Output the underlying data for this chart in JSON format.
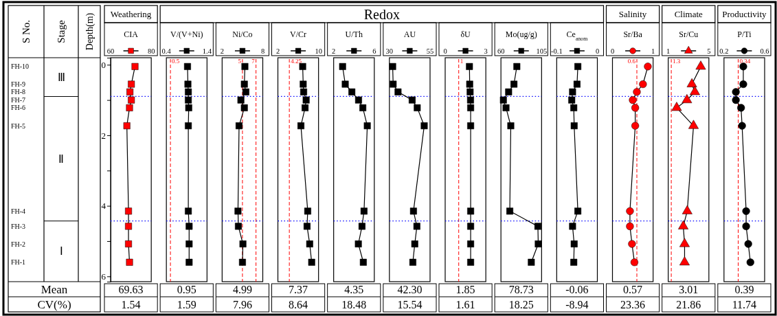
{
  "chart_data": [
    {
      "type": "other",
      "annotations": [
        "Weathering",
        "Redox",
        "Salinity",
        "Climate",
        "Productivity",
        "S No.",
        "Stage",
        "Mean",
        "CV(%)",
        "Ⅲ",
        "Ⅱ",
        "Ⅰ",
        "FH-10",
        "FH-9",
        "FH-8",
        "FH-7",
        "FH-6",
        "FH-5",
        "FH-4",
        "FH-3",
        "FH-2",
        "FH-1"
      ]
    },
    {
      "type": "line",
      "title": "CIA",
      "ylabel": "Depth(m)",
      "xlim": [
        60,
        80
      ],
      "xticks": [
        60,
        80
      ],
      "ylim": [
        6.15,
        -0.2
      ],
      "yticks": [
        0,
        {
          "value": 1,
          "label": null
        },
        2,
        {
          "value": 3,
          "label": null
        },
        4,
        {
          "value": 5,
          "label": null
        },
        6
      ],
      "marker": "square",
      "series": [
        {
          "color": "#ff0000",
          "x": [
            72.0,
            70.2,
            69.5,
            70.2,
            69.3,
            68.0,
            68.8,
            68.8,
            68.8,
            69.3
          ],
          "values": [
            0.05,
            0.55,
            0.77,
            1.0,
            1.22,
            1.73,
            4.15,
            4.58,
            5.08,
            5.6
          ]
        }
      ],
      "ref_lines": [
        {
          "axis": "y",
          "value": 0.9,
          "color": "#0000ff",
          "line_style": "dotted"
        },
        {
          "axis": "y",
          "value": 4.43,
          "color": "#0000ff",
          "line_style": "dotted"
        }
      ],
      "annotations": [
        "69.63",
        "1.54"
      ]
    },
    {
      "type": "line",
      "title": "V/(V+Ni)",
      "xlim": [
        0.4,
        1.4
      ],
      "xticks": [
        0.4,
        1.4
      ],
      "ylim": [
        6.15,
        -0.2
      ],
      "tick_labels": "x",
      "marker": "square",
      "series": [
        {
          "color": "#000000",
          "x": [
            0.92,
            0.93,
            0.94,
            0.94,
            0.95,
            0.94,
            0.94,
            0.96,
            0.96,
            0.96
          ],
          "values": [
            0.05,
            0.55,
            0.77,
            1.0,
            1.22,
            1.73,
            4.15,
            4.58,
            5.08,
            5.6
          ]
        }
      ],
      "ref_lines": [
        {
          "axis": "x",
          "value": 0.5,
          "label": "0.5",
          "color": "#ff0000",
          "line_style": "dashed"
        },
        {
          "axis": "y",
          "value": 0.9,
          "color": "#0000ff",
          "line_style": "dotted"
        },
        {
          "axis": "y",
          "value": 4.43,
          "color": "#0000ff",
          "line_style": "dotted"
        }
      ],
      "annotations": [
        "0.95",
        "1.59"
      ]
    },
    {
      "type": "line",
      "title": "Ni/Co",
      "xlim": [
        2,
        8
      ],
      "xticks": [
        2,
        8
      ],
      "ylim": [
        6.15,
        -0.2
      ],
      "tick_labels": "x",
      "marker": "square",
      "series": [
        {
          "color": "#000000",
          "x": [
            5.36,
            5.28,
            5.5,
            4.77,
            5.28,
            4.5,
            4.34,
            4.4,
            5.07,
            5.0
          ],
          "values": [
            0.05,
            0.55,
            0.77,
            1.0,
            1.22,
            1.73,
            4.15,
            4.58,
            5.08,
            5.6
          ]
        }
      ],
      "ref_lines": [
        {
          "axis": "x",
          "value": 5,
          "label": "5",
          "color": "#ff0000",
          "line_style": "dashed"
        },
        {
          "axis": "x",
          "value": 7,
          "label": "7",
          "color": "#ff0000",
          "line_style": "dashed"
        },
        {
          "axis": "y",
          "value": 0.9,
          "color": "#0000ff",
          "line_style": "dotted"
        },
        {
          "axis": "y",
          "value": 4.43,
          "color": "#0000ff",
          "line_style": "dotted"
        }
      ],
      "annotations": [
        "4.99",
        "7.96"
      ]
    },
    {
      "type": "line",
      "title": "V/Cr",
      "xlim": [
        2,
        10
      ],
      "xticks": [
        2,
        10
      ],
      "ylim": [
        6.15,
        -0.2
      ],
      "tick_labels": "x",
      "marker": "square",
      "series": [
        {
          "color": "#000000",
          "x": [
            6.88,
            6.98,
            7.07,
            7.56,
            7.35,
            6.53,
            7.87,
            7.74,
            8.26,
            8.65
          ],
          "values": [
            0.05,
            0.55,
            0.77,
            1.0,
            1.22,
            1.73,
            4.15,
            4.58,
            5.08,
            5.6
          ]
        }
      ],
      "ref_lines": [
        {
          "axis": "x",
          "value": 4.25,
          "label": "4.25",
          "color": "#ff0000",
          "line_style": "dashed"
        },
        {
          "axis": "y",
          "value": 0.9,
          "color": "#0000ff",
          "line_style": "dotted"
        },
        {
          "axis": "y",
          "value": 4.43,
          "color": "#0000ff",
          "line_style": "dotted"
        }
      ],
      "annotations": [
        "7.37",
        "8.64"
      ]
    },
    {
      "type": "line",
      "title": "U/Th",
      "xlim": [
        2,
        6
      ],
      "xticks": [
        2,
        6
      ],
      "ylim": [
        6.15,
        -0.2
      ],
      "tick_labels": "x",
      "marker": "square",
      "series": [
        {
          "color": "#000000",
          "x": [
            2.88,
            3.14,
            3.79,
            4.45,
            4.87,
            5.31,
            4.99,
            4.79,
            4.43,
            4.92
          ],
          "values": [
            0.05,
            0.55,
            0.77,
            1.0,
            1.22,
            1.73,
            4.15,
            4.58,
            5.08,
            5.6
          ]
        }
      ],
      "ref_lines": [
        {
          "axis": "y",
          "value": 0.9,
          "color": "#0000ff",
          "line_style": "dotted"
        },
        {
          "axis": "y",
          "value": 4.43,
          "color": "#0000ff",
          "line_style": "dotted"
        }
      ],
      "annotations": [
        "4.35",
        "18.48"
      ]
    },
    {
      "type": "line",
      "title": "AU",
      "xlim": [
        30,
        55
      ],
      "xticks": [
        30,
        55
      ],
      "ylim": [
        6.15,
        -0.2
      ],
      "tick_labels": "x",
      "marker": "square",
      "series": [
        {
          "color": "#000000",
          "x": [
            32.0,
            32.3,
            35.3,
            44.0,
            47.1,
            51.4,
            44.8,
            46.9,
            45.6,
            44.4
          ],
          "values": [
            0.05,
            0.55,
            0.77,
            1.0,
            1.22,
            1.73,
            4.15,
            4.58,
            5.08,
            5.6
          ]
        }
      ],
      "ref_lines": [
        {
          "axis": "y",
          "value": 0.9,
          "color": "#0000ff",
          "line_style": "dotted"
        },
        {
          "axis": "y",
          "value": 4.43,
          "color": "#0000ff",
          "line_style": "dotted"
        }
      ],
      "annotations": [
        "42.30",
        "15.54"
      ]
    },
    {
      "type": "line",
      "title": "δU",
      "xlim": [
        0,
        3
      ],
      "xticks": [
        0,
        3
      ],
      "ylim": [
        6.15,
        -0.2
      ],
      "tick_labels": "x",
      "marker": "square",
      "series": [
        {
          "color": "#000000",
          "x": [
            1.79,
            1.81,
            1.84,
            1.87,
            1.88,
            1.88,
            1.88,
            1.88,
            1.88,
            1.88
          ],
          "values": [
            0.05,
            0.55,
            0.77,
            1.0,
            1.22,
            1.73,
            4.15,
            4.58,
            5.08,
            5.6
          ]
        }
      ],
      "ref_lines": [
        {
          "axis": "x",
          "value": 1,
          "label": "1",
          "color": "#ff0000",
          "line_style": "dashed"
        },
        {
          "axis": "y",
          "value": 0.9,
          "color": "#0000ff",
          "line_style": "dotted"
        },
        {
          "axis": "y",
          "value": 4.43,
          "color": "#0000ff",
          "line_style": "dotted"
        }
      ],
      "annotations": [
        "1.85",
        "1.61"
      ]
    },
    {
      "type": "line",
      "title": "Mo(ug/g)",
      "xlim": [
        60,
        105
      ],
      "xticks": [
        60,
        105
      ],
      "ylim": [
        6.15,
        -0.2
      ],
      "tick_labels": "x",
      "marker": "square",
      "series": [
        {
          "color": "#000000",
          "x": [
            77.6,
            74.4,
            68.5,
            62.7,
            65.6,
            70.9,
            69.8,
            100.9,
            101.3,
            93.6
          ],
          "values": [
            0.05,
            0.55,
            0.77,
            1.0,
            1.22,
            1.73,
            4.15,
            4.58,
            5.08,
            5.6
          ]
        }
      ],
      "ref_lines": [
        {
          "axis": "y",
          "value": 0.9,
          "color": "#0000ff",
          "line_style": "dotted"
        },
        {
          "axis": "y",
          "value": 4.43,
          "color": "#0000ff",
          "line_style": "dotted"
        }
      ],
      "annotations": [
        "78.73",
        "18.25"
      ]
    },
    {
      "type": "line",
      "title": "Ce$_{anom}$",
      "xlim": [
        -0.1,
        0
      ],
      "xticks": [
        -0.1,
        0
      ],
      "ylim": [
        6.15,
        -0.2
      ],
      "tick_labels": "x",
      "marker": "square",
      "series": [
        {
          "color": "#000000",
          "x": [
            -0.048,
            -0.05,
            -0.061,
            -0.063,
            -0.058,
            -0.057,
            -0.048,
            -0.061,
            -0.057,
            -0.058
          ],
          "values": [
            0.05,
            0.55,
            0.77,
            1.0,
            1.22,
            1.73,
            4.15,
            4.58,
            5.08,
            5.6
          ]
        }
      ],
      "ref_lines": [
        {
          "axis": "y",
          "value": 0.9,
          "color": "#0000ff",
          "line_style": "dotted"
        },
        {
          "axis": "y",
          "value": 4.43,
          "color": "#0000ff",
          "line_style": "dotted"
        }
      ],
      "annotations": [
        "-0.06",
        "-8.94"
      ]
    },
    {
      "type": "line",
      "title": "Sr/Ba",
      "xlim": [
        0,
        1
      ],
      "xticks": [
        0,
        1
      ],
      "ylim": [
        6.15,
        -0.2
      ],
      "tick_labels": "x",
      "marker": "circle",
      "series": [
        {
          "color": "#ff0000",
          "x": [
            0.87,
            0.75,
            0.6,
            0.5,
            0.56,
            0.56,
            0.43,
            0.43,
            0.48,
            0.54
          ],
          "values": [
            0.05,
            0.55,
            0.77,
            1.0,
            1.22,
            1.73,
            4.15,
            4.58,
            5.08,
            5.6
          ]
        }
      ],
      "ref_lines": [
        {
          "axis": "x",
          "value": 0.6,
          "label": "0.6",
          "color": "#ff0000",
          "line_style": "dashed"
        },
        {
          "axis": "y",
          "value": 0.9,
          "color": "#0000ff",
          "line_style": "dotted"
        },
        {
          "axis": "y",
          "value": 4.43,
          "color": "#0000ff",
          "line_style": "dotted"
        }
      ],
      "annotations": [
        "0.57",
        "23.36"
      ]
    },
    {
      "type": "line",
      "title": "Sr/Cu",
      "xlim": [
        1,
        5
      ],
      "xticks": [
        1,
        5
      ],
      "ylim": [
        6.15,
        -0.2
      ],
      "tick_labels": "x",
      "marker": "triangle",
      "series": [
        {
          "color": "#ff0000",
          "x": [
            4.2,
            3.33,
            3.62,
            2.84,
            1.83,
            3.49,
            2.87,
            2.48,
            2.61,
            2.61
          ],
          "values": [
            0.05,
            0.55,
            0.77,
            1.0,
            1.22,
            1.73,
            4.15,
            4.58,
            5.08,
            5.6
          ]
        }
      ],
      "ref_lines": [
        {
          "axis": "x",
          "value": 1.3,
          "label": "1.3",
          "color": "#ff0000",
          "line_style": "dashed"
        },
        {
          "axis": "y",
          "value": 0.9,
          "color": "#0000ff",
          "line_style": "dotted"
        },
        {
          "axis": "y",
          "value": 4.43,
          "color": "#0000ff",
          "line_style": "dotted"
        }
      ],
      "annotations": [
        "3.01",
        "21.86"
      ]
    },
    {
      "type": "line",
      "title": "P/Ti",
      "xlim": [
        0.2,
        0.6
      ],
      "xticks": [
        0.2,
        0.6
      ],
      "ylim": [
        6.15,
        -0.2
      ],
      "tick_labels": "x",
      "marker": "circle",
      "series": [
        {
          "color": "#000000",
          "x": [
            0.39,
            0.39,
            0.317,
            0.317,
            0.368,
            0.378,
            0.418,
            0.418,
            0.439,
            0.46
          ],
          "values": [
            0.05,
            0.55,
            0.77,
            1.0,
            1.22,
            1.73,
            4.15,
            4.58,
            5.08,
            5.6
          ]
        }
      ],
      "ref_lines": [
        {
          "axis": "x",
          "value": 0.34,
          "label": "0.34",
          "color": "#ff0000",
          "line_style": "dashed"
        },
        {
          "axis": "y",
          "value": 0.9,
          "color": "#0000ff",
          "line_style": "dotted"
        },
        {
          "axis": "y",
          "value": 4.43,
          "color": "#0000ff",
          "line_style": "dotted"
        }
      ],
      "annotations": [
        "0.39",
        "11.74"
      ]
    }
  ]
}
